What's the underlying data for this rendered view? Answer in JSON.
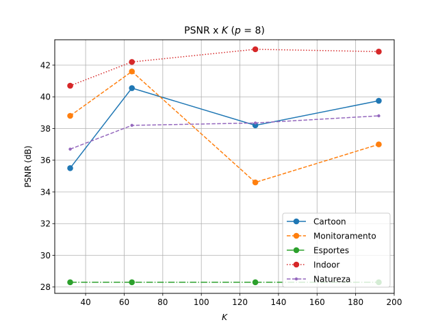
{
  "chart_data": {
    "type": "line",
    "title": "PSNR x K (p = 8)",
    "title_parts": {
      "prefix": "PSNR x ",
      "k": "K",
      "open": " (",
      "p": "p",
      "eq": " = 8)"
    },
    "xlabel": "K",
    "ylabel": "PSNR (dB)",
    "xlim": [
      24,
      200
    ],
    "ylim": [
      27.6,
      43.6
    ],
    "xticks": [
      40,
      60,
      80,
      100,
      120,
      140,
      160,
      180,
      200
    ],
    "yticks": [
      28,
      30,
      32,
      34,
      36,
      38,
      40,
      42
    ],
    "x": [
      32,
      64,
      128,
      192
    ],
    "grid": true,
    "legend_position": "lower-right",
    "series": [
      {
        "name": "Cartoon",
        "values": [
          35.5,
          40.55,
          38.2,
          39.75
        ],
        "color": "#1f77b4",
        "dash": "solid",
        "marker": "circle"
      },
      {
        "name": "Monitoramento",
        "values": [
          38.8,
          41.6,
          34.6,
          37.0
        ],
        "color": "#ff7f0e",
        "dash": "dashed",
        "marker": "circle"
      },
      {
        "name": "Esportes",
        "values": [
          28.3,
          28.3,
          28.3,
          28.3
        ],
        "color": "#2ca02c",
        "dash": "dashdot",
        "marker": "circle"
      },
      {
        "name": "Indoor",
        "values": [
          40.7,
          42.2,
          43.0,
          42.85
        ],
        "color": "#d62728",
        "dash": "dotted",
        "marker": "circle"
      },
      {
        "name": "Natureza",
        "values": [
          36.7,
          38.2,
          38.35,
          38.8
        ],
        "color": "#9467bd",
        "dash": "dashed",
        "marker": "point"
      }
    ]
  }
}
